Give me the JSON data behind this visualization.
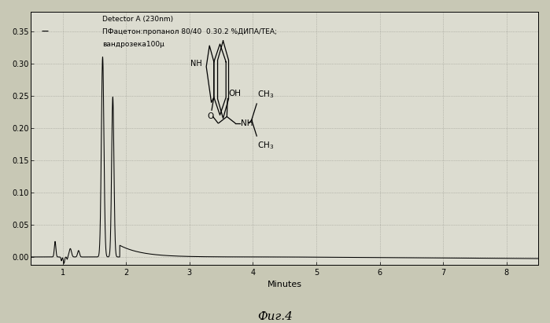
{
  "title": "",
  "xlabel": "Minutes",
  "ylabel": "",
  "xlim": [
    0.5,
    8.5
  ],
  "ylim": [
    -0.012,
    0.38
  ],
  "yticks": [
    0.0,
    0.05,
    0.1,
    0.15,
    0.2,
    0.25,
    0.3,
    0.35
  ],
  "xticks": [
    1,
    2,
    3,
    4,
    5,
    6,
    7,
    8
  ],
  "legend_line1": "Detector A (230nm)",
  "legend_line2": "ПФацетон:пропанол 80/40  0.30.2 %ДИПА/TEA;",
  "legend_line3": "вандрозека100µ",
  "footer": "Фиг.4",
  "line_color": "#000000",
  "bg_color": "#c8c8b8",
  "plot_bg_color": "#e0e0d5"
}
